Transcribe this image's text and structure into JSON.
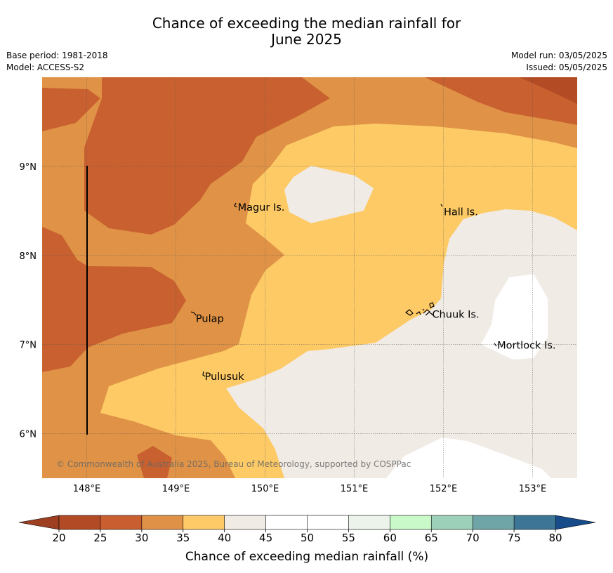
{
  "title": {
    "line1": "Chance of exceeding the median rainfall for",
    "line2": "June 2025"
  },
  "meta": {
    "base_period": "Base period: 1981-2018",
    "model": "Model: ACCESS-S2",
    "model_run": "Model run: 03/05/2025",
    "issued": "Issued: 05/05/2025"
  },
  "map": {
    "lon_range": [
      147.5,
      153.5
    ],
    "lat_range": [
      5.5,
      10.0
    ],
    "lon_ticks": [
      "148°E",
      "149°E",
      "150°E",
      "151°E",
      "152°E",
      "153°E"
    ],
    "lat_ticks": [
      "9°N",
      "8°N",
      "7°N",
      "6°N"
    ],
    "grid": true,
    "copyright": "© Commonwealth of Australia 2025, Bureau of Meteorology, supported by COSPPac",
    "places": [
      {
        "name": "Magur Is.",
        "lon": 149.67,
        "lat": 8.55
      },
      {
        "name": "Hall Is.",
        "lon": 151.98,
        "lat": 8.5
      },
      {
        "name": "Pulap",
        "lon": 149.2,
        "lat": 7.3
      },
      {
        "name": "Chuuk Is.",
        "lon": 151.85,
        "lat": 7.35
      },
      {
        "name": "Mortlock Is.",
        "lon": 152.58,
        "lat": 7.0
      },
      {
        "name": "Pulusuk",
        "lon": 149.3,
        "lat": 6.65
      }
    ],
    "category_colors": {
      "20-25": "#b34b25",
      "25-30": "#c8612f",
      "30-35": "#e09346",
      "35-40": "#fdca66",
      "40-45": "#f0ebe5",
      "45-55": "#ffffff"
    }
  },
  "colorbar": {
    "label": "Chance of exceeding median rainfall (%)",
    "ticks": [
      "20",
      "25",
      "30",
      "35",
      "40",
      "45",
      "50",
      "55",
      "60",
      "65",
      "70",
      "75",
      "80"
    ],
    "colors": [
      "#b24a26",
      "#c95f31",
      "#df9247",
      "#fec967",
      "#f0ebe5",
      "#ffffff",
      "#ffffff",
      "#ecf3ea",
      "#c9f8c9",
      "#9dd0b8",
      "#6fa5a7",
      "#3d7596"
    ],
    "under_color": "#9e3f22",
    "over_color": "#174b8a"
  }
}
